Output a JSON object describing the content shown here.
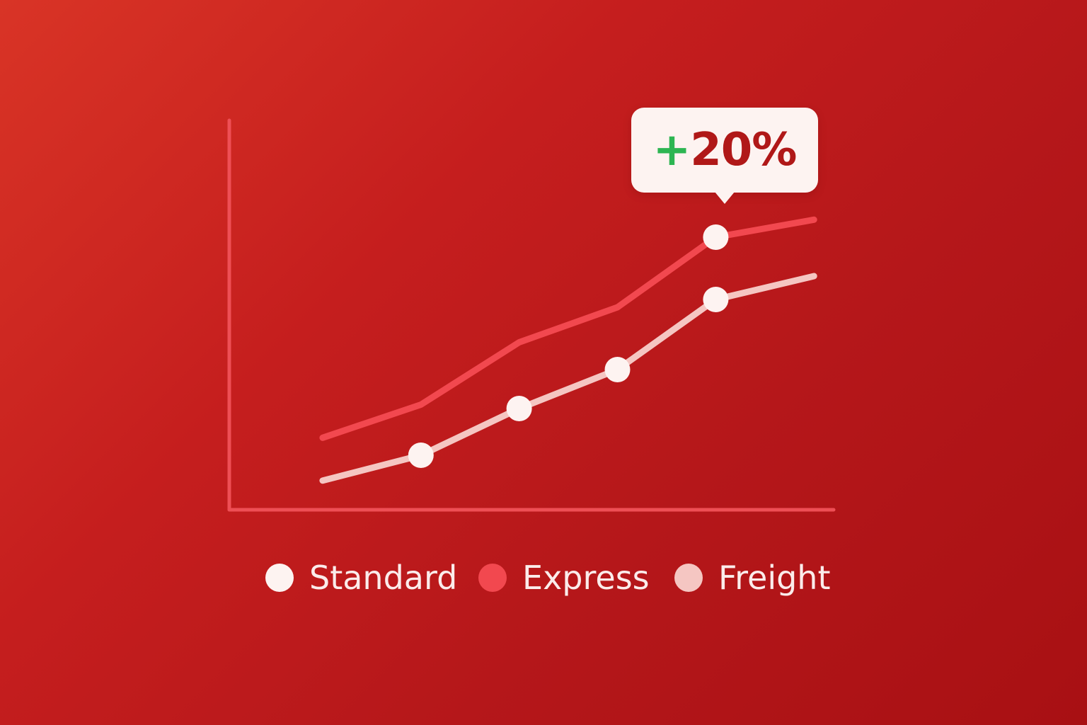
{
  "colors": {
    "axis": "#ee4f55",
    "standard": "#fdf3f1",
    "express": "#f2484f",
    "freight": "#f5c6c2",
    "marker": "#fdf3f1",
    "callout_bg": "#fdf3f1",
    "callout_sign": "#2db552",
    "callout_value": "#b01818"
  },
  "chart_data": {
    "type": "line",
    "title": "",
    "xlabel": "",
    "ylabel": "",
    "x": [
      0,
      1,
      2,
      3,
      4,
      5
    ],
    "xlim": [
      -0.95,
      5.2
    ],
    "ylim": [
      0,
      100
    ],
    "grid": false,
    "series": [
      {
        "name": "Express",
        "color_key": "express",
        "values": [
          18.5,
          27,
          43,
          52,
          70,
          74.5
        ],
        "markers": [
          4
        ]
      },
      {
        "name": "Freight",
        "color_key": "freight",
        "values": [
          7.5,
          14,
          26,
          36,
          54,
          60
        ],
        "markers": [
          1,
          2,
          3,
          4
        ]
      }
    ],
    "annotations": [
      {
        "series": "Express",
        "x": 4,
        "sign": "+",
        "value": "20%"
      }
    ],
    "legend": {
      "placement": "bottom",
      "items": [
        {
          "label": "Standard",
          "color_key": "standard"
        },
        {
          "label": "Express",
          "color_key": "express"
        },
        {
          "label": "Freight",
          "color_key": "freight"
        }
      ]
    }
  }
}
